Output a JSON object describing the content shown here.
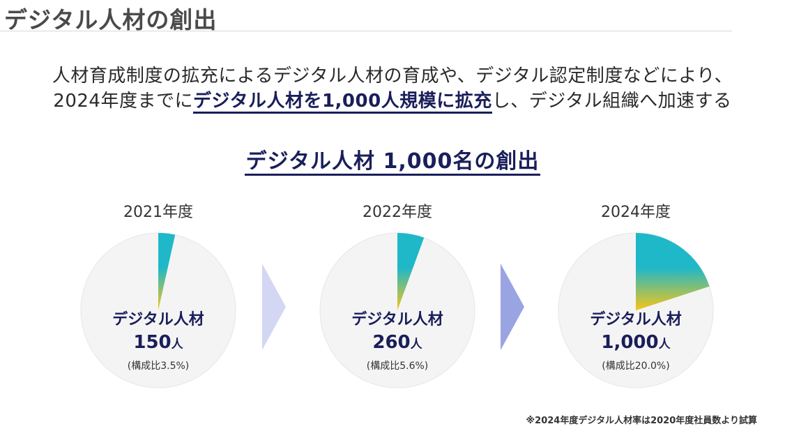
{
  "header": {
    "title": "デジタル人材の創出"
  },
  "intro": {
    "line1": "人材育成制度の拡充によるデジタル人材の育成や、デジタル認定制度などにより、",
    "line2_pre": "2024年度までに",
    "line2_emph": "デジタル人材を1,000人規模に拡充",
    "line2_post": "し、デジタル組織へ加速する"
  },
  "section_title": "デジタル人材 1,000名の創出",
  "footnote": "※2024年度デジタル人材率は2020年度社員数より試算",
  "colors": {
    "accent": "#1a1e5a",
    "teal": "#1fb8c8",
    "yellow": "#f5c518",
    "pie_bg": "#f4f4f4",
    "arrow": "#9aa4e2"
  },
  "chart_data": [
    {
      "type": "pie",
      "title": "2021年度",
      "label_name": "デジタル人材",
      "count": "150",
      "unit": "人",
      "ratio_text": "(構成比3.5%)",
      "slices": [
        {
          "name": "デジタル人材",
          "value": 3.5
        },
        {
          "name": "",
          "value": 96.5
        }
      ]
    },
    {
      "type": "pie",
      "title": "2022年度",
      "label_name": "デジタル人材",
      "count": "260",
      "unit": "人",
      "ratio_text": "(構成比5.6%)",
      "slices": [
        {
          "name": "デジタル人材",
          "value": 5.6
        },
        {
          "name": "",
          "value": 94.4
        }
      ]
    },
    {
      "type": "pie",
      "title": "2024年度",
      "label_name": "デジタル人材",
      "count": "1,000",
      "unit": "人",
      "ratio_text": "(構成比20.0%)",
      "slices": [
        {
          "name": "デジタル人材",
          "value": 20.0
        },
        {
          "name": "",
          "value": 80.0
        }
      ]
    }
  ]
}
